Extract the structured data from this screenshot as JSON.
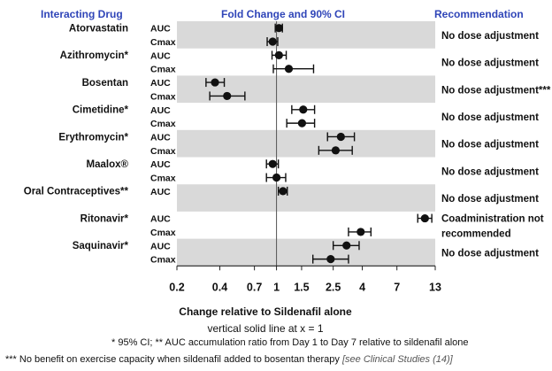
{
  "headers": {
    "drug": "Interacting Drug",
    "fold": "Fold Change and 90% CI",
    "recommendation": "Recommendation"
  },
  "chart_data": {
    "type": "forest",
    "xscale": "log",
    "xlim": [
      0.2,
      13
    ],
    "xticks": [
      "0.2",
      "0.4",
      "0.7",
      "1",
      "1.5",
      "2.5",
      "4",
      "7",
      "13"
    ],
    "reference_line_x": 1,
    "xlabel": "Change relative to Sildenafil alone",
    "xlabel_note": "vertical solid line at x = 1",
    "grid": false,
    "marker_color": "#111111",
    "band_color": "#d9d9d9",
    "groups": [
      {
        "drug": "Atorvastatin",
        "recommendation": [
          "No dose adjustment"
        ],
        "shaded": true,
        "rows": [
          {
            "param": "AUC",
            "est": 1.04,
            "lo": 0.98,
            "hi": 1.1
          },
          {
            "param": "Cmax",
            "est": 0.94,
            "lo": 0.86,
            "hi": 1.02
          }
        ]
      },
      {
        "drug": "Azithromycin*",
        "recommendation": [
          "No dose adjustment"
        ],
        "shaded": false,
        "rows": [
          {
            "param": "AUC",
            "est": 1.04,
            "lo": 0.93,
            "hi": 1.17
          },
          {
            "param": "Cmax",
            "est": 1.22,
            "lo": 0.95,
            "hi": 1.82
          }
        ]
      },
      {
        "drug": "Bosentan",
        "recommendation": [
          "No dose adjustment***"
        ],
        "shaded": true,
        "rows": [
          {
            "param": "AUC",
            "est": 0.37,
            "lo": 0.32,
            "hi": 0.43
          },
          {
            "param": "Cmax",
            "est": 0.45,
            "lo": 0.34,
            "hi": 0.6
          }
        ]
      },
      {
        "drug": "Cimetidine*",
        "recommendation": [
          "No dose adjustment"
        ],
        "shaded": false,
        "rows": [
          {
            "param": "AUC",
            "est": 1.54,
            "lo": 1.28,
            "hi": 1.85
          },
          {
            "param": "Cmax",
            "est": 1.51,
            "lo": 1.18,
            "hi": 1.85
          }
        ]
      },
      {
        "drug": "Erythromycin*",
        "recommendation": [
          "No dose adjustment"
        ],
        "shaded": true,
        "rows": [
          {
            "param": "AUC",
            "est": 2.83,
            "lo": 2.28,
            "hi": 3.52
          },
          {
            "param": "Cmax",
            "est": 2.6,
            "lo": 1.98,
            "hi": 3.4
          }
        ]
      },
      {
        "drug": "Maalox®",
        "recommendation": [
          "No dose adjustment"
        ],
        "shaded": false,
        "rows": [
          {
            "param": "AUC",
            "est": 0.94,
            "lo": 0.85,
            "hi": 1.03
          },
          {
            "param": "Cmax",
            "est": 1.0,
            "lo": 0.85,
            "hi": 1.16
          }
        ]
      },
      {
        "drug": "Oral Contraceptives**",
        "recommendation": [
          "No dose adjustment"
        ],
        "shaded": true,
        "rows": [
          {
            "param": "AUC",
            "est": 1.11,
            "lo": 1.03,
            "hi": 1.19
          }
        ]
      },
      {
        "drug": "Ritonavir*",
        "recommendation": [
          "Coadministration not",
          "recommended"
        ],
        "shaded": false,
        "rows": [
          {
            "param": "AUC",
            "est": 11.0,
            "lo": 9.8,
            "hi": 12.3
          },
          {
            "param": "Cmax",
            "est": 3.9,
            "lo": 3.2,
            "hi": 4.6
          }
        ]
      },
      {
        "drug": "Saquinavir*",
        "recommendation": [
          "No dose adjustment"
        ],
        "shaded": true,
        "rows": [
          {
            "param": "AUC",
            "est": 3.1,
            "lo": 2.5,
            "hi": 3.8
          },
          {
            "param": "Cmax",
            "est": 2.4,
            "lo": 1.8,
            "hi": 3.2
          }
        ]
      }
    ]
  },
  "footnotes": {
    "line1": "* 95% CI;  ** AUC accumulation ratio from Day 1 to Day 7 relative to sildenafil alone",
    "line2_main": "*** No benefit on exercise capacity when sildenafil added to bosentan therapy",
    "line2_italic": "[see Clinical Studies (14)]"
  }
}
